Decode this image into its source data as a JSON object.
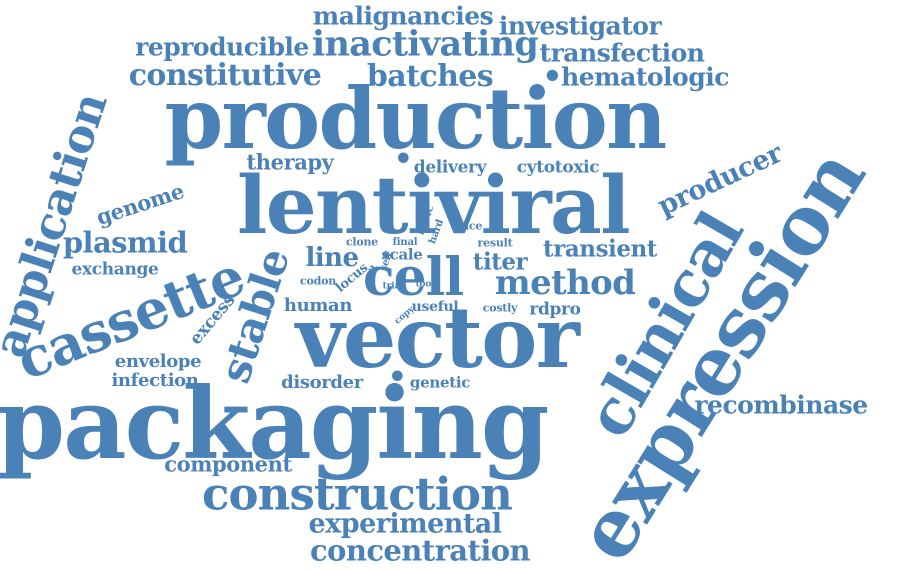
{
  "colors": {
    "word": "#4a82b8",
    "background": "#ffffff"
  },
  "words": [
    "malignancies",
    "investigator",
    "reproducible",
    "inactivating",
    "transfection",
    "constitutive",
    "batches",
    "hematologic",
    "production",
    "application",
    "therapy",
    "delivery",
    "cytotoxic",
    "producer",
    "genome",
    "lentiviral",
    "clinical",
    "expression",
    "plasmid",
    "clone",
    "final",
    "basic",
    "hard",
    "rmce",
    "result",
    "transient",
    "exchange",
    "line",
    "scale",
    "self",
    "unit",
    "codon",
    "locus",
    "cell",
    "titer",
    "cassette",
    "method",
    "trial",
    "tool",
    "human",
    "useful",
    "costly",
    "rdpro",
    "excess",
    "copy",
    "stable",
    "vector",
    "envelope",
    "infection",
    "disorder",
    "genetic",
    "recombinase",
    "packaging",
    "component",
    "construction",
    "experimental",
    "concentration"
  ]
}
